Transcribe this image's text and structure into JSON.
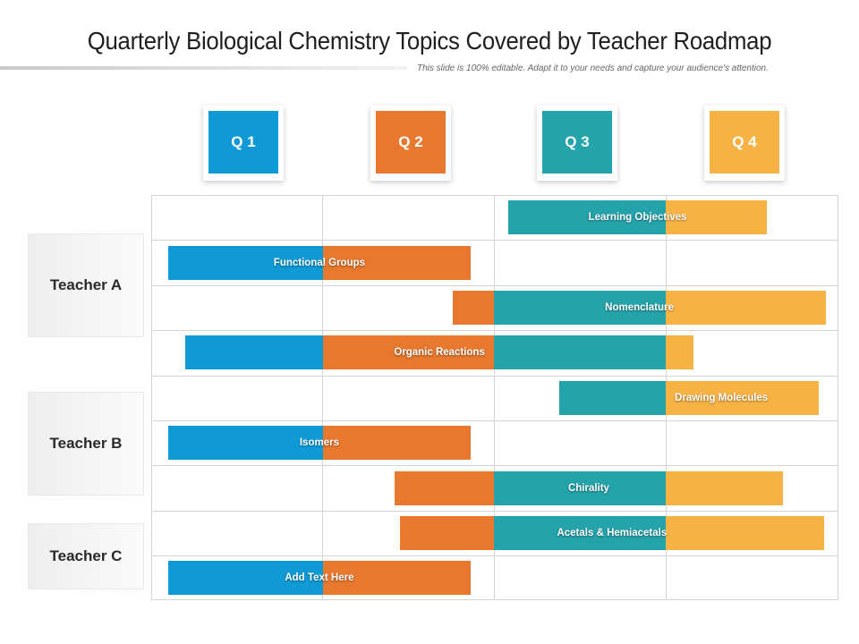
{
  "title": "Quarterly Biological Chemistry Topics Covered by Teacher Roadmap",
  "subtitle": "This slide is 100% editable. Adapt it to your needs and capture your audience's attention.",
  "colors": {
    "q1": "#0f9ad6",
    "q2": "#e8782e",
    "q3": "#25a3ab",
    "q4": "#f7b244"
  },
  "quarters": [
    {
      "label": "Q 1"
    },
    {
      "label": "Q 2"
    },
    {
      "label": "Q 3"
    },
    {
      "label": "Q 4"
    }
  ],
  "teachers": [
    {
      "name": "Teacher A"
    },
    {
      "name": "Teacher B"
    },
    {
      "name": "Teacher C"
    }
  ],
  "topics": [
    {
      "label": "Learning Objectives",
      "start": 2.08,
      "end": 3.59
    },
    {
      "label": "Functional Groups",
      "start": 0.1,
      "end": 1.86
    },
    {
      "label": "Nomenclature",
      "start": 1.76,
      "end": 3.93
    },
    {
      "label": "Organic Reactions",
      "start": 0.2,
      "end": 3.16
    },
    {
      "label": "Drawing Molecules",
      "start": 2.38,
      "end": 3.89
    },
    {
      "label": "Isomers",
      "start": 0.1,
      "end": 1.86
    },
    {
      "label": "Chirality",
      "start": 1.42,
      "end": 3.68
    },
    {
      "label": "Acetals & Hemiacetals",
      "start": 1.45,
      "end": 3.92
    },
    {
      "label": "Add Text Here",
      "start": 0.1,
      "end": 1.86
    }
  ]
}
